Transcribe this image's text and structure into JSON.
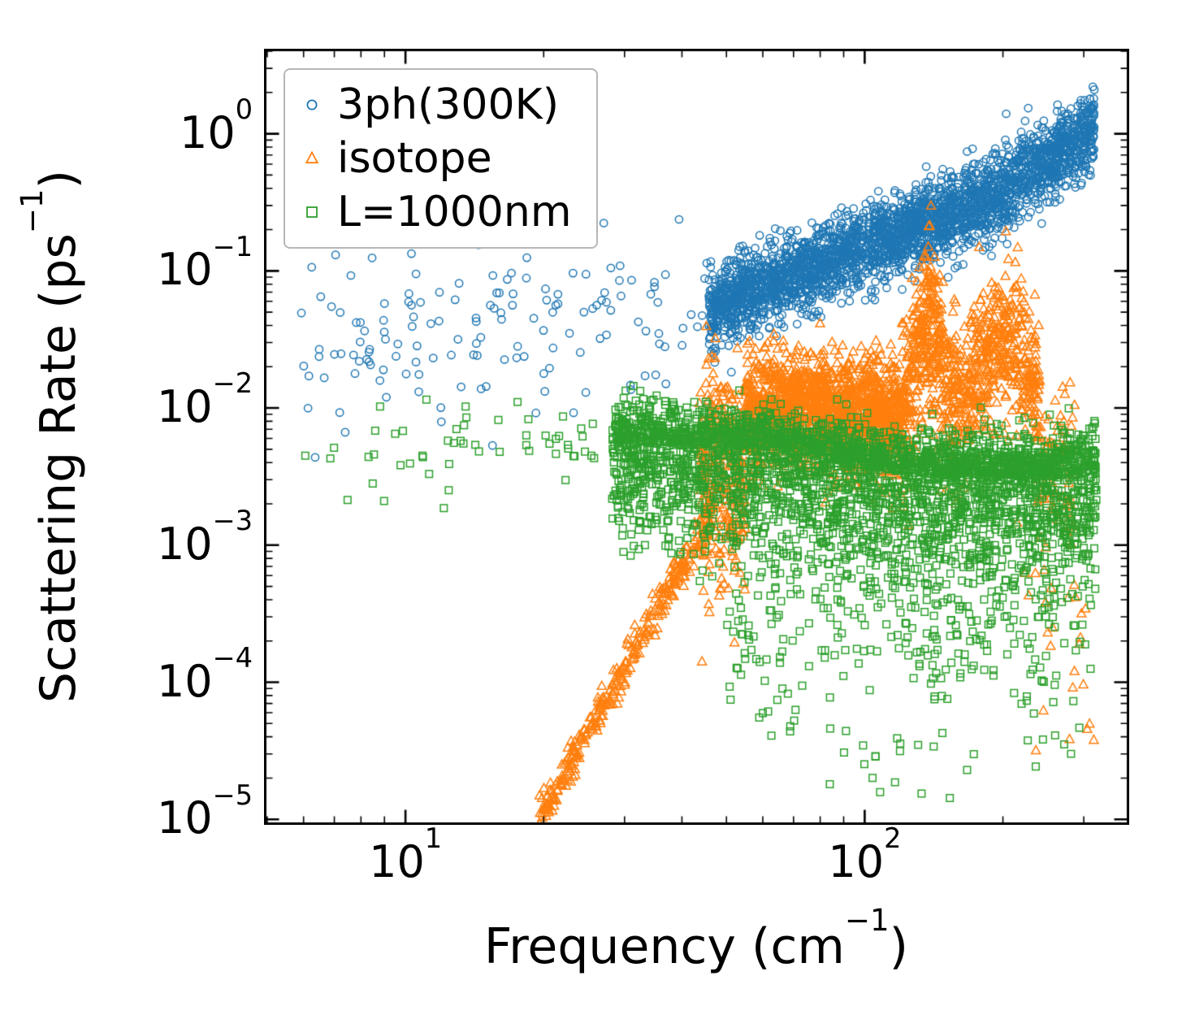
{
  "figure": {
    "background": "#ffffff",
    "frame_color": "#000000"
  },
  "chart_data": {
    "type": "scatter",
    "title": "",
    "xlabel": {
      "pre": "Frequency (cm",
      "sup": "−1",
      "post": ")"
    },
    "ylabel": {
      "pre": "Scattering Rate (ps",
      "sup": "−1",
      "post": ")"
    },
    "x_scale": "log",
    "y_scale": "log",
    "axes": {
      "xlim_log10": [
        0.692,
        2.576
      ],
      "ylim_log10": [
        -5.04,
        0.62
      ],
      "x_major_tick_exponents": [
        1,
        2
      ],
      "y_major_tick_exponents": [
        0,
        -1,
        -2,
        -3,
        -4,
        -5
      ],
      "tick_direction": "in",
      "minor_ticks": true,
      "grid": false
    },
    "legend": {
      "position": "upper left",
      "entries": [
        "3ph(300K)",
        "isotope",
        "L=1000nm"
      ]
    },
    "seed": 42,
    "series": [
      {
        "name": "3ph(300K)",
        "color": "#1f77b4",
        "marker": "circle",
        "marker_px": 4.6,
        "segments": [
          {
            "logx": [
              0.77,
              1.66
            ],
            "center": [
              [
                0.77,
                -1.5
              ],
              [
                1.2,
                -1.4
              ],
              [
                1.66,
                -1.22
              ]
            ],
            "spread_up": 0.3,
            "spread_down": 0.38,
            "n": 150
          },
          {
            "logx": [
              1.66,
              2.5
            ],
            "center": [
              [
                1.66,
                -1.28
              ],
              [
                1.9,
                -0.95
              ],
              [
                2.1,
                -0.7
              ],
              [
                2.3,
                -0.42
              ],
              [
                2.5,
                0.05
              ]
            ],
            "spread_up": 0.14,
            "spread_down": 0.15,
            "n": 3000
          }
        ]
      },
      {
        "name": "isotope",
        "color": "#ff7f0e",
        "marker": "triangle",
        "marker_px": 5.0,
        "segments": [
          {
            "logx": [
              1.29,
              1.67
            ],
            "center": [
              [
                1.29,
                -5.0
              ],
              [
                1.5,
                -3.75
              ],
              [
                1.67,
                -2.75
              ]
            ],
            "spread_up": 0.07,
            "spread_down": 0.07,
            "n": 320
          },
          {
            "logx": [
              1.64,
              1.74
            ],
            "center": -2.5,
            "spread_up": 0.42,
            "spread_down": 0.4,
            "n": 300
          },
          {
            "logx": [
              1.74,
              2.08
            ],
            "center": [
              [
                1.74,
                -2.05
              ],
              [
                1.9,
                -2.0
              ],
              [
                2.08,
                -2.08
              ]
            ],
            "spread_up": 0.2,
            "spread_down": 0.22,
            "n": 1500
          },
          {
            "logx": [
              2.08,
              2.2
            ],
            "center": [
              [
                2.08,
                -2.05
              ],
              [
                2.14,
                -1.3
              ],
              [
                2.2,
                -2.0
              ]
            ],
            "spread_up": 0.3,
            "spread_down": 0.35,
            "n": 420
          },
          {
            "logx": [
              2.2,
              2.38
            ],
            "center": [
              [
                2.2,
                -1.95
              ],
              [
                2.28,
                -1.55
              ],
              [
                2.33,
                -1.5
              ],
              [
                2.38,
                -1.95
              ]
            ],
            "spread_up": 0.25,
            "spread_down": 0.3,
            "n": 460
          },
          {
            "logx": [
              2.38,
              2.46
            ],
            "center": -2.4,
            "spread_up": 0.3,
            "spread_down": 0.3,
            "n": 70
          },
          {
            "logx": [
              2.33,
              2.5
            ],
            "center": -3.6,
            "spread_up": 0.6,
            "spread_down": 0.55,
            "n": 30
          }
        ]
      },
      {
        "name": "L=1000nm",
        "color": "#2ca02c",
        "marker": "square",
        "marker_px": 4.7,
        "segments": [
          {
            "logx": [
              0.77,
              1.45
            ],
            "center": [
              [
                0.77,
                -2.45
              ],
              [
                1.1,
                -2.25
              ],
              [
                1.45,
                -2.2
              ]
            ],
            "spread_up": 0.14,
            "spread_down": 0.18,
            "n": 55
          },
          {
            "logx": [
              1.45,
              2.505
            ],
            "center": [
              [
                1.45,
                -2.25
              ],
              [
                1.8,
                -2.3
              ],
              [
                2.1,
                -2.48
              ],
              [
                2.35,
                -2.5
              ],
              [
                2.505,
                -2.45
              ]
            ],
            "spread_up": 0.14,
            "spread_down": 0.38,
            "n": 3300
          },
          {
            "logx": [
              1.7,
              2.505
            ],
            "center": -3.35,
            "spread_up": 0.45,
            "spread_down": 0.45,
            "n": 420
          },
          {
            "logx": [
              1.8,
              2.505
            ],
            "center": -4.4,
            "spread_up": 0.35,
            "spread_down": 0.3,
            "n": 28
          }
        ]
      }
    ]
  }
}
